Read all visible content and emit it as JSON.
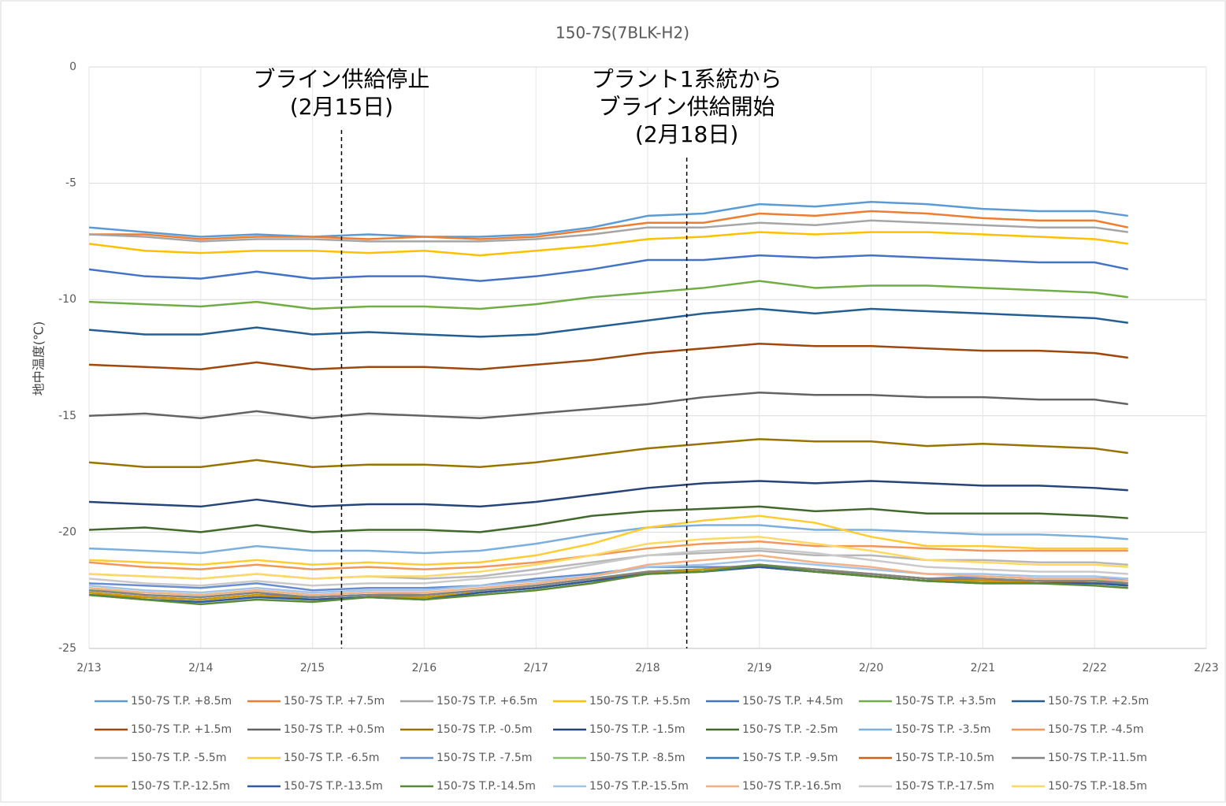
{
  "chart_data": {
    "type": "line",
    "title": "150-7S(7BLK-H2)",
    "y_label": "地中温度(℃)",
    "x": [
      0,
      0.5,
      1,
      1.5,
      2,
      2.5,
      3,
      3.5,
      4,
      4.5,
      5,
      5.5,
      6,
      6.5,
      7,
      7.5,
      8,
      8.5,
      9,
      9.3
    ],
    "xlim": [
      0,
      10
    ],
    "xticks": [
      {
        "value": 0,
        "label": "2/13"
      },
      {
        "value": 1,
        "label": "2/14"
      },
      {
        "value": 2,
        "label": "2/15"
      },
      {
        "value": 3,
        "label": "2/16"
      },
      {
        "value": 4,
        "label": "2/17"
      },
      {
        "value": 5,
        "label": "2/18"
      },
      {
        "value": 6,
        "label": "2/19"
      },
      {
        "value": 7,
        "label": "2/20"
      },
      {
        "value": 8,
        "label": "2/21"
      },
      {
        "value": 9,
        "label": "2/22"
      },
      {
        "value": 10,
        "label": "2/23"
      }
    ],
    "ylim": [
      -25,
      0
    ],
    "yticks": [
      -25,
      -20,
      -15,
      -10,
      -5,
      0
    ],
    "grid": true,
    "legend": "bottom",
    "annotations": [
      {
        "lines": [
          "ブライン供給停止",
          "(2月15日)"
        ],
        "x": 2.26
      },
      {
        "lines": [
          "プラント1系統から",
          "ブライン供給開始",
          "(2月18日)"
        ],
        "x": 5.35
      }
    ],
    "series": [
      {
        "name": "150-7S T.P. +8.5m",
        "color": "#5b9bd5",
        "values": [
          -6.9,
          -7.1,
          -7.3,
          -7.2,
          -7.3,
          -7.2,
          -7.3,
          -7.3,
          -7.2,
          -6.9,
          -6.4,
          -6.3,
          -5.9,
          -6.0,
          -5.8,
          -5.9,
          -6.1,
          -6.2,
          -6.2,
          -6.4
        ]
      },
      {
        "name": "150-7S T.P. +7.5m",
        "color": "#ed7d31",
        "values": [
          -7.2,
          -7.2,
          -7.4,
          -7.3,
          -7.3,
          -7.4,
          -7.3,
          -7.4,
          -7.3,
          -7.0,
          -6.7,
          -6.7,
          -6.3,
          -6.4,
          -6.2,
          -6.3,
          -6.5,
          -6.6,
          -6.6,
          -6.9
        ]
      },
      {
        "name": "150-7S T.P. +6.5m",
        "color": "#a5a5a5",
        "values": [
          -7.2,
          -7.3,
          -7.5,
          -7.4,
          -7.4,
          -7.5,
          -7.5,
          -7.5,
          -7.4,
          -7.2,
          -6.9,
          -6.9,
          -6.7,
          -6.8,
          -6.6,
          -6.7,
          -6.8,
          -6.9,
          -6.9,
          -7.1
        ]
      },
      {
        "name": "150-7S T.P. +5.5m",
        "color": "#ffc000",
        "values": [
          -7.6,
          -7.9,
          -8.0,
          -7.9,
          -7.9,
          -8.0,
          -7.9,
          -8.1,
          -7.9,
          -7.7,
          -7.4,
          -7.3,
          -7.1,
          -7.2,
          -7.1,
          -7.1,
          -7.2,
          -7.3,
          -7.4,
          -7.6
        ]
      },
      {
        "name": "150-7S T.P. +4.5m",
        "color": "#4472c4",
        "values": [
          -8.7,
          -9.0,
          -9.1,
          -8.8,
          -9.1,
          -9.0,
          -9.0,
          -9.2,
          -9.0,
          -8.7,
          -8.3,
          -8.3,
          -8.1,
          -8.2,
          -8.1,
          -8.2,
          -8.3,
          -8.4,
          -8.4,
          -8.7
        ]
      },
      {
        "name": "150-7S T.P. +3.5m",
        "color": "#70ad47",
        "values": [
          -10.1,
          -10.2,
          -10.3,
          -10.1,
          -10.4,
          -10.3,
          -10.3,
          -10.4,
          -10.2,
          -9.9,
          -9.7,
          -9.5,
          -9.2,
          -9.5,
          -9.4,
          -9.4,
          -9.5,
          -9.6,
          -9.7,
          -9.9
        ]
      },
      {
        "name": "150-7S T.P. +2.5m",
        "color": "#255e91",
        "values": [
          -11.3,
          -11.5,
          -11.5,
          -11.2,
          -11.5,
          -11.4,
          -11.5,
          -11.6,
          -11.5,
          -11.2,
          -10.9,
          -10.6,
          -10.4,
          -10.6,
          -10.4,
          -10.5,
          -10.6,
          -10.7,
          -10.8,
          -11.0
        ]
      },
      {
        "name": "150-7S T.P. +1.5m",
        "color": "#9e480e",
        "values": [
          -12.8,
          -12.9,
          -13.0,
          -12.7,
          -13.0,
          -12.9,
          -12.9,
          -13.0,
          -12.8,
          -12.6,
          -12.3,
          -12.1,
          -11.9,
          -12.0,
          -12.0,
          -12.1,
          -12.2,
          -12.2,
          -12.3,
          -12.5
        ]
      },
      {
        "name": "150-7S T.P. +0.5m",
        "color": "#636363",
        "values": [
          -15.0,
          -14.9,
          -15.1,
          -14.8,
          -15.1,
          -14.9,
          -15.0,
          -15.1,
          -14.9,
          -14.7,
          -14.5,
          -14.2,
          -14.0,
          -14.1,
          -14.1,
          -14.2,
          -14.2,
          -14.3,
          -14.3,
          -14.5
        ]
      },
      {
        "name": "150-7S T.P. -0.5m",
        "color": "#997300",
        "values": [
          -17.0,
          -17.2,
          -17.2,
          -16.9,
          -17.2,
          -17.1,
          -17.1,
          -17.2,
          -17.0,
          -16.7,
          -16.4,
          -16.2,
          -16.0,
          -16.1,
          -16.1,
          -16.3,
          -16.2,
          -16.3,
          -16.4,
          -16.6
        ]
      },
      {
        "name": "150-7S T.P. -1.5m",
        "color": "#264478",
        "values": [
          -18.7,
          -18.8,
          -18.9,
          -18.6,
          -18.9,
          -18.8,
          -18.8,
          -18.9,
          -18.7,
          -18.4,
          -18.1,
          -17.9,
          -17.8,
          -17.9,
          -17.8,
          -17.9,
          -18.0,
          -18.0,
          -18.1,
          -18.2
        ]
      },
      {
        "name": "150-7S T.P. -2.5m",
        "color": "#43682b",
        "values": [
          -19.9,
          -19.8,
          -20.0,
          -19.7,
          -20.0,
          -19.9,
          -19.9,
          -20.0,
          -19.7,
          -19.3,
          -19.1,
          -19.0,
          -18.9,
          -19.1,
          -19.0,
          -19.2,
          -19.2,
          -19.2,
          -19.3,
          -19.4
        ]
      },
      {
        "name": "150-7S T.P. -3.5m",
        "color": "#7cafdd",
        "values": [
          -20.7,
          -20.8,
          -20.9,
          -20.6,
          -20.8,
          -20.8,
          -20.9,
          -20.8,
          -20.5,
          -20.1,
          -19.8,
          -19.7,
          -19.7,
          -19.9,
          -19.9,
          -20.0,
          -20.1,
          -20.1,
          -20.2,
          -20.3
        ]
      },
      {
        "name": "150-7S T.P. -4.5m",
        "color": "#f1975a",
        "values": [
          -21.3,
          -21.5,
          -21.6,
          -21.4,
          -21.6,
          -21.5,
          -21.6,
          -21.5,
          -21.3,
          -21.0,
          -20.7,
          -20.5,
          -20.4,
          -20.6,
          -20.6,
          -20.7,
          -20.8,
          -20.8,
          -20.8,
          -20.8
        ]
      },
      {
        "name": "150-7S T.P. -5.5m",
        "color": "#b7b7b7",
        "values": [
          -21.8,
          -21.9,
          -22.0,
          -21.8,
          -22.0,
          -21.9,
          -22.0,
          -21.9,
          -21.6,
          -21.3,
          -21.0,
          -20.9,
          -20.8,
          -21.0,
          -21.0,
          -21.2,
          -21.2,
          -21.3,
          -21.3,
          -21.4
        ]
      },
      {
        "name": "150-7S T.P. -6.5m",
        "color": "#ffcd33",
        "values": [
          -21.2,
          -21.3,
          -21.4,
          -21.2,
          -21.4,
          -21.3,
          -21.4,
          -21.3,
          -21.0,
          -20.5,
          -19.8,
          -19.5,
          -19.3,
          -19.6,
          -20.2,
          -20.6,
          -20.6,
          -20.7,
          -20.7,
          -20.7
        ]
      },
      {
        "name": "150-7S T.P. -7.5m",
        "color": "#698ed0",
        "values": [
          -22.2,
          -22.3,
          -22.4,
          -22.2,
          -22.5,
          -22.4,
          -22.4,
          -22.3,
          -22.0,
          -21.8,
          -21.5,
          -21.5,
          -21.5,
          -21.7,
          -21.8,
          -22.0,
          -21.9,
          -22.0,
          -22.0,
          -22.0
        ]
      },
      {
        "name": "150-7S T.P. -8.5m",
        "color": "#8cc168",
        "values": [
          -22.5,
          -22.6,
          -22.7,
          -22.5,
          -22.7,
          -22.6,
          -22.7,
          -22.5,
          -22.3,
          -22.0,
          -21.7,
          -21.6,
          -21.5,
          -21.7,
          -21.8,
          -22.0,
          -22.0,
          -22.1,
          -22.1,
          -22.1
        ]
      },
      {
        "name": "150-7S T.P. -9.5m",
        "color": "#327dc2",
        "values": [
          -22.6,
          -22.8,
          -22.9,
          -22.7,
          -22.8,
          -22.7,
          -22.8,
          -22.6,
          -22.4,
          -22.1,
          -21.8,
          -21.6,
          -21.5,
          -21.7,
          -21.9,
          -22.1,
          -22.1,
          -22.2,
          -22.2,
          -22.2
        ]
      },
      {
        "name": "150-7S T.P.-10.5m",
        "color": "#d26012",
        "values": [
          -22.7,
          -22.8,
          -22.9,
          -22.7,
          -22.9,
          -22.8,
          -22.8,
          -22.6,
          -22.4,
          -22.1,
          -21.7,
          -21.6,
          -21.4,
          -21.6,
          -21.8,
          -22.0,
          -22.1,
          -22.1,
          -22.2,
          -22.3
        ]
      },
      {
        "name": "150-7S T.P.-11.5m",
        "color": "#848484",
        "values": [
          -22.5,
          -22.7,
          -22.8,
          -22.6,
          -22.8,
          -22.7,
          -22.7,
          -22.5,
          -22.3,
          -22.0,
          -21.7,
          -21.6,
          -21.4,
          -21.6,
          -21.8,
          -22.0,
          -22.0,
          -22.1,
          -22.1,
          -22.2
        ]
      },
      {
        "name": "150-7S T.P.-12.5m",
        "color": "#cc9a00",
        "values": [
          -22.6,
          -22.8,
          -22.9,
          -22.7,
          -22.9,
          -22.8,
          -22.8,
          -22.6,
          -22.4,
          -22.1,
          -21.8,
          -21.6,
          -21.5,
          -21.7,
          -21.9,
          -22.1,
          -22.1,
          -22.2,
          -22.2,
          -22.3
        ]
      },
      {
        "name": "150-7S T.P.-13.5m",
        "color": "#335aa1",
        "values": [
          -22.7,
          -22.9,
          -23.0,
          -22.8,
          -22.9,
          -22.8,
          -22.9,
          -22.6,
          -22.4,
          -22.1,
          -21.8,
          -21.7,
          -21.5,
          -21.7,
          -21.9,
          -22.1,
          -22.2,
          -22.2,
          -22.2,
          -22.3
        ]
      },
      {
        "name": "150-7S T.P.-14.5m",
        "color": "#5a8a39",
        "values": [
          -22.7,
          -22.9,
          -23.1,
          -22.9,
          -23.0,
          -22.8,
          -22.9,
          -22.7,
          -22.5,
          -22.2,
          -21.8,
          -21.7,
          -21.4,
          -21.7,
          -21.9,
          -22.1,
          -22.2,
          -22.2,
          -22.3,
          -22.4
        ]
      },
      {
        "name": "150-7S T.P.-15.5m",
        "color": "#a2c4e6",
        "values": [
          -22.3,
          -22.5,
          -22.6,
          -22.4,
          -22.6,
          -22.5,
          -22.5,
          -22.3,
          -22.1,
          -21.9,
          -21.5,
          -21.4,
          -21.2,
          -21.4,
          -21.6,
          -21.8,
          -21.8,
          -21.9,
          -21.9,
          -22.0
        ]
      },
      {
        "name": "150-7S T.P.-16.5m",
        "color": "#f4b183",
        "values": [
          -22.4,
          -22.6,
          -22.7,
          -22.5,
          -22.7,
          -22.6,
          -22.6,
          -22.4,
          -22.2,
          -21.9,
          -21.4,
          -21.2,
          -21.0,
          -21.3,
          -21.5,
          -21.8,
          -21.9,
          -22.0,
          -22.0,
          -22.1
        ]
      },
      {
        "name": "150-7S T.P.-17.5m",
        "color": "#c9c9c9",
        "values": [
          -22.0,
          -22.2,
          -22.3,
          -22.1,
          -22.3,
          -22.2,
          -22.2,
          -22.0,
          -21.8,
          -21.4,
          -21.0,
          -20.8,
          -20.7,
          -20.9,
          -21.2,
          -21.5,
          -21.6,
          -21.7,
          -21.7,
          -21.8
        ]
      },
      {
        "name": "150-7S T.P.-18.5m",
        "color": "#ffd966",
        "values": [
          -21.8,
          -21.9,
          -22.0,
          -21.8,
          -22.0,
          -21.9,
          -21.9,
          -21.7,
          -21.4,
          -21.0,
          -20.5,
          -20.3,
          -20.2,
          -20.5,
          -20.8,
          -21.2,
          -21.3,
          -21.4,
          -21.4,
          -21.5
        ]
      }
    ]
  }
}
